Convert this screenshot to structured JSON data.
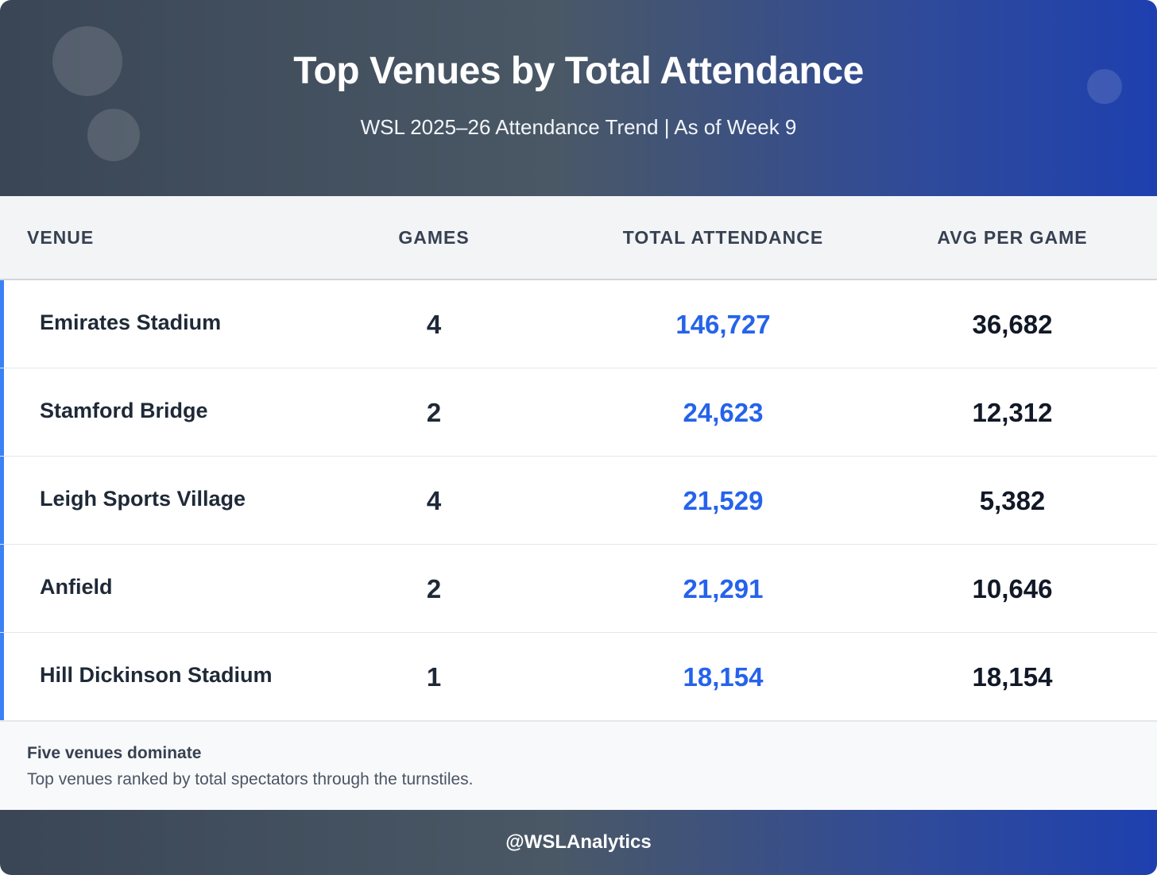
{
  "header": {
    "title": "Top Venues by Total Attendance",
    "subtitle": "WSL 2025–26 Attendance Trend | As of Week 9"
  },
  "colors": {
    "accent": "#3b82f6",
    "total_value": "#2563eb",
    "header_gradient_start": "#3a4656",
    "header_gradient_end": "#1e40af"
  },
  "chart_data": {
    "type": "table",
    "title": "Top Venues by Total Attendance",
    "subtitle": "WSL 2025–26 Attendance Trend | As of Week 9",
    "columns": [
      "VENUE",
      "GAMES",
      "TOTAL ATTENDANCE",
      "AVG PER GAME"
    ],
    "rows": [
      {
        "venue": "Emirates Stadium",
        "games": "4",
        "total": "146,727",
        "avg": "36,682"
      },
      {
        "venue": "Stamford Bridge",
        "games": "2",
        "total": "24,623",
        "avg": "12,312"
      },
      {
        "venue": "Leigh Sports Village",
        "games": "4",
        "total": "21,529",
        "avg": "5,382"
      },
      {
        "venue": "Anfield",
        "games": "2",
        "total": "21,291",
        "avg": "10,646"
      },
      {
        "venue": "Hill Dickinson Stadium",
        "games": "1",
        "total": "18,154",
        "avg": "18,154"
      }
    ]
  },
  "note": {
    "title": "Five venues dominate",
    "text": "Top venues ranked by total spectators through the turnstiles."
  },
  "footer": {
    "handle": "@WSLAnalytics"
  }
}
